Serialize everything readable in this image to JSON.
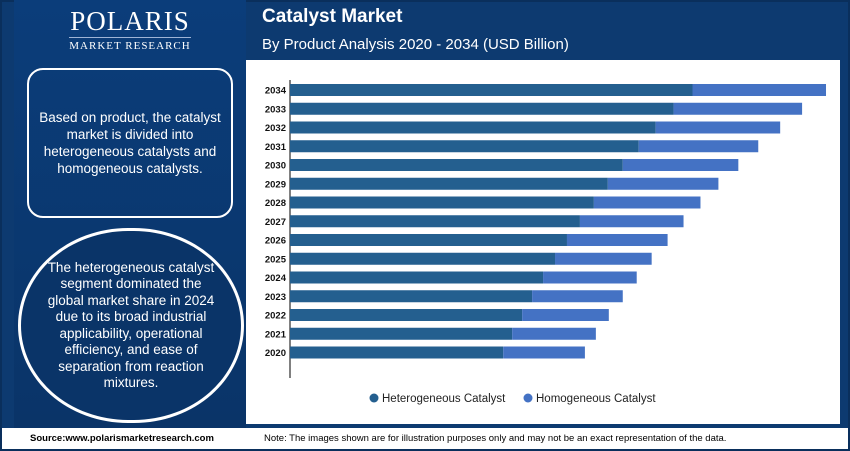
{
  "logo": {
    "brand": "POLARIS",
    "sub": "MARKET RESEARCH"
  },
  "header": {
    "title": "Catalyst Market",
    "subtitle": "By Product Analysis 2020 - 2034 (USD Billion)"
  },
  "left_panel": {
    "text1": "Based on product, the catalyst market is divided into heterogeneous catalysts and homogeneous catalysts.",
    "text2": "The heterogeneous catalyst segment dominated the global market share in 2024 due to its broad industrial applicability, operational efficiency, and ease of separation from reaction mixtures."
  },
  "footer": {
    "source": "Source:www.polarismarketresearch.com",
    "note": "Note: The images shown are for illustration purposes only and may not be an exact representation of the data."
  },
  "chart_data": {
    "type": "bar",
    "orientation": "horizontal",
    "stacked": true,
    "title": "Catalyst Market",
    "subtitle": "By Product Analysis 2020 - 2034 (USD Billion)",
    "categories": [
      "2020",
      "2021",
      "2022",
      "2023",
      "2024",
      "2025",
      "2026",
      "2027",
      "2028",
      "2029",
      "2030",
      "2031",
      "2032",
      "2033",
      "2034"
    ],
    "series": [
      {
        "name": "Heterogeneous Catalyst",
        "color": "#245f8f",
        "values": [
          21.4,
          22.3,
          23.3,
          24.3,
          25.4,
          26.6,
          27.8,
          29.1,
          30.5,
          31.9,
          33.4,
          35.0,
          36.7,
          38.5,
          40.4
        ]
      },
      {
        "name": "Homogeneous Catalyst",
        "color": "#4472c4",
        "values": [
          8.2,
          8.4,
          8.7,
          9.1,
          9.4,
          9.7,
          10.1,
          10.4,
          10.7,
          11.1,
          11.6,
          12.0,
          12.5,
          12.9,
          13.4
        ]
      }
    ],
    "xlim": [
      0,
      54
    ],
    "grid": false,
    "value_axis_labels": false,
    "legend": "bottom"
  }
}
